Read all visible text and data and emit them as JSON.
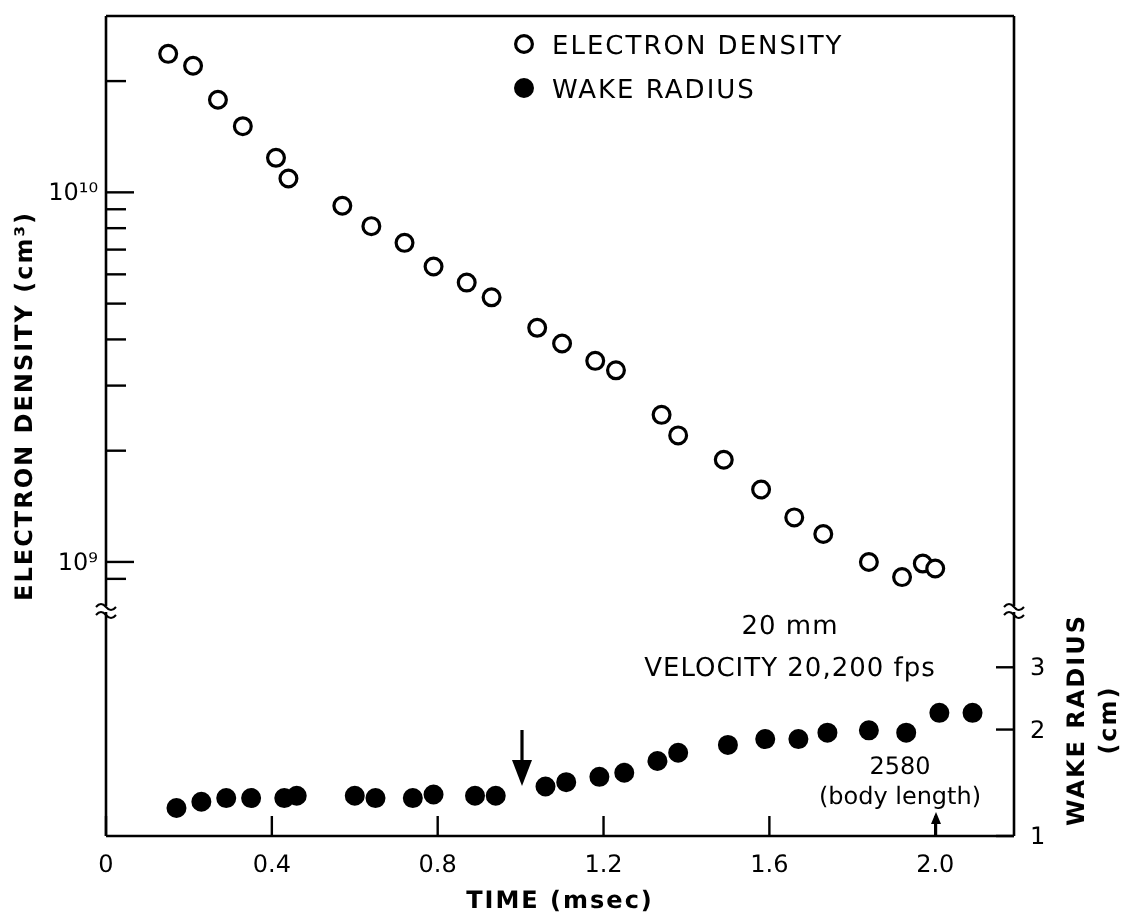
{
  "chart_data": [
    {
      "type": "scatter",
      "ylabel": "ELECTRON DENSITY (cm³)",
      "xlim": [
        0,
        2.19
      ],
      "ylim": [
        760000000.0,
        30000000000.0
      ],
      "log": "y",
      "tick_labels": "y",
      "marker": "circle",
      "legend": "top right",
      "yticks": [
        {
          "value": 900000000.0,
          "label": null
        },
        {
          "value": 1000000000.0,
          "label": "10⁹"
        },
        {
          "value": 2000000000.0,
          "label": null
        },
        {
          "value": 3000000000.0,
          "label": null
        },
        {
          "value": 4000000000.0,
          "label": null
        },
        {
          "value": 5000000000.0,
          "label": null
        },
        {
          "value": 6000000000.0,
          "label": null
        },
        {
          "value": 7000000000.0,
          "label": null
        },
        {
          "value": 8000000000.0,
          "label": null
        },
        {
          "value": 9000000000.0,
          "label": null
        },
        {
          "value": 10000000000.0,
          "label": "10¹⁰"
        },
        {
          "value": 20000000000.0,
          "label": null
        }
      ],
      "series": [
        {
          "name": "ELECTRON DENSITY",
          "color": "#000000",
          "x": [
            0.15,
            0.21,
            0.27,
            0.33,
            0.41,
            0.44,
            0.57,
            0.64,
            0.72,
            0.79,
            0.87,
            0.93,
            1.04,
            1.1,
            1.18,
            1.23,
            1.34,
            1.38,
            1.49,
            1.58,
            1.66,
            1.73,
            1.84,
            1.92,
            1.97,
            2.0
          ],
          "values": [
            23700000000.0,
            22000000000.0,
            17800000000.0,
            15100000000.0,
            12400000000.0,
            10900000000.0,
            9200000000.0,
            8100000000.0,
            7300000000.0,
            6300000000.0,
            5700000000.0,
            5200000000.0,
            4300000000.0,
            3900000000.0,
            3500000000.0,
            3300000000.0,
            2500000000.0,
            2200000000.0,
            1890000000.0,
            1570000000.0,
            1320000000.0,
            1190000000.0,
            1000000000.0,
            910000000.0,
            990000000.0,
            960000000.0
          ]
        }
      ]
    },
    {
      "type": "scatter",
      "xlabel": "TIME (msec)",
      "y2label": "WAKE RADIUS (cm)",
      "xlim": [
        0,
        2.19
      ],
      "xticks": [
        0,
        0.4,
        0.8,
        1.2,
        1.6,
        {
          "value": 2,
          "label": "2.0"
        }
      ],
      "y2lim": [
        1,
        4.3
      ],
      "y2ticks": [
        1,
        2,
        3
      ],
      "log": "y2",
      "marker": "circle",
      "annotations": [
        "20 mm",
        "VELOCITY 20,200 fps",
        "2580 (body length)"
      ],
      "series": [
        {
          "name": "WAKE RADIUS",
          "color": "#000000",
          "axis": "y2",
          "x": [
            0.17,
            0.23,
            0.29,
            0.35,
            0.43,
            0.46,
            0.6,
            0.65,
            0.74,
            0.79,
            0.89,
            0.94,
            1.06,
            1.11,
            1.19,
            1.25,
            1.33,
            1.38,
            1.5,
            1.59,
            1.67,
            1.74,
            1.84,
            1.93,
            2.01,
            2.09
          ],
          "values": [
            1.2,
            1.25,
            1.28,
            1.28,
            1.28,
            1.3,
            1.3,
            1.28,
            1.28,
            1.31,
            1.3,
            1.3,
            1.38,
            1.42,
            1.47,
            1.51,
            1.63,
            1.72,
            1.81,
            1.88,
            1.88,
            1.96,
            1.99,
            1.96,
            2.23,
            2.23
          ]
        }
      ]
    }
  ]
}
